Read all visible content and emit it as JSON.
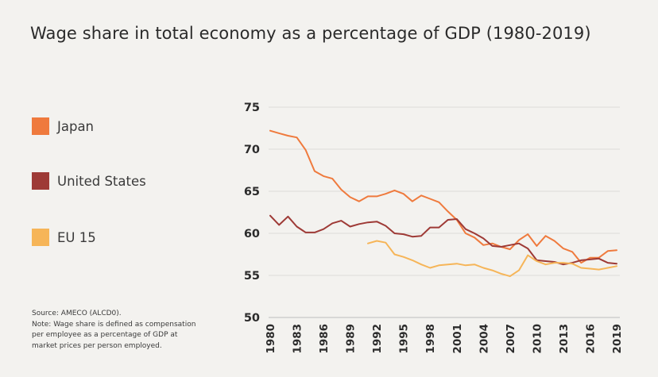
{
  "chart_data": {
    "type": "line",
    "title": "Wage share in total economy as a percentage of GDP (1980-2019)",
    "xlabel": "",
    "ylabel": "",
    "ylim": [
      50,
      75
    ],
    "xlim": [
      1980,
      2019
    ],
    "yticks": [
      "75",
      "70",
      "65",
      "60",
      "55",
      "50"
    ],
    "xticks": [
      "1980",
      "1983",
      "1986",
      "1989",
      "1992",
      "1995",
      "1998",
      "2001",
      "2004",
      "2007",
      "2010",
      "2013",
      "2016",
      "2019"
    ],
    "grid": "horizontal",
    "legend_position": "left",
    "series": [
      {
        "name": "Japan",
        "color": "#ef7a3d",
        "x": [
          1980,
          1981,
          1982,
          1983,
          1984,
          1985,
          1986,
          1987,
          1988,
          1989,
          1990,
          1991,
          1992,
          1993,
          1994,
          1995,
          1996,
          1997,
          1998,
          1999,
          2000,
          2001,
          2002,
          2003,
          2004,
          2005,
          2006,
          2007,
          2008,
          2009,
          2010,
          2011,
          2012,
          2013,
          2014,
          2015,
          2016,
          2017,
          2018,
          2019
        ],
        "values": [
          72.2,
          71.9,
          71.6,
          71.4,
          69.9,
          67.4,
          66.8,
          66.5,
          65.2,
          64.3,
          63.8,
          64.4,
          64.4,
          64.7,
          65.1,
          64.7,
          63.8,
          64.5,
          64.1,
          63.7,
          62.6,
          61.6,
          60.0,
          59.5,
          58.6,
          58.8,
          58.4,
          58.1,
          59.2,
          59.9,
          58.5,
          59.7,
          59.1,
          58.2,
          57.8,
          56.5,
          57.1,
          57.1,
          57.9,
          58.0
        ]
      },
      {
        "name": "United States",
        "color": "#9e3a36",
        "x": [
          1980,
          1981,
          1982,
          1983,
          1984,
          1985,
          1986,
          1987,
          1988,
          1989,
          1990,
          1991,
          1992,
          1993,
          1994,
          1995,
          1996,
          1997,
          1998,
          1999,
          2000,
          2001,
          2002,
          2003,
          2004,
          2005,
          2006,
          2007,
          2008,
          2009,
          2010,
          2011,
          2012,
          2013,
          2014,
          2015,
          2016,
          2017,
          2018,
          2019
        ],
        "values": [
          62.1,
          61.0,
          62.0,
          60.8,
          60.1,
          60.1,
          60.5,
          61.2,
          61.5,
          60.8,
          61.1,
          61.3,
          61.4,
          60.9,
          60.0,
          59.9,
          59.6,
          59.7,
          60.7,
          60.7,
          61.6,
          61.7,
          60.5,
          60.0,
          59.4,
          58.5,
          58.4,
          58.6,
          58.8,
          58.2,
          56.8,
          56.7,
          56.6,
          56.3,
          56.5,
          56.8,
          56.9,
          57.0,
          56.5,
          56.4
        ]
      },
      {
        "name": "EU 15",
        "color": "#f6b558",
        "x": [
          1991,
          1992,
          1993,
          1994,
          1995,
          1996,
          1997,
          1998,
          1999,
          2000,
          2001,
          2002,
          2003,
          2004,
          2005,
          2006,
          2007,
          2008,
          2009,
          2010,
          2011,
          2012,
          2013,
          2014,
          2015,
          2016,
          2017,
          2018,
          2019
        ],
        "values": [
          58.8,
          59.1,
          58.9,
          57.5,
          57.2,
          56.8,
          56.3,
          55.9,
          56.2,
          56.3,
          56.4,
          56.2,
          56.3,
          55.9,
          55.6,
          55.2,
          54.9,
          55.6,
          57.4,
          56.7,
          56.3,
          56.5,
          56.5,
          56.4,
          55.9,
          55.8,
          55.7,
          55.9,
          56.1
        ]
      }
    ]
  },
  "source_note": {
    "source": "Source: AMECO (ALCD0).",
    "note_lines": [
      "Note: Wage share is defined as compensation",
      "per employee as a percentage of GDP at",
      "market prices per person employed."
    ]
  }
}
